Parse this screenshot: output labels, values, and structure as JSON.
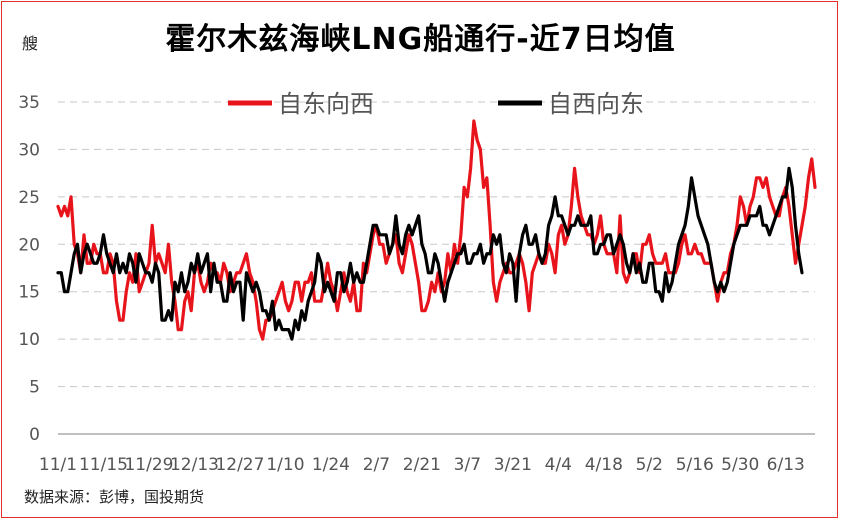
{
  "header": {
    "title": "霍尔木兹海峡LNG船通行-近7日均值",
    "unit": "艘"
  },
  "footer": {
    "source": "数据来源：彭博，国投期货"
  },
  "colors": {
    "series_westbound": "#e8141b",
    "series_eastbound": "#000000",
    "grid": "#c8c8c8",
    "frame": "#e03030"
  },
  "chart_data": {
    "type": "line",
    "title": "霍尔木兹海峡LNG船通行-近7日均值",
    "ylabel": "艘",
    "xlabel": "",
    "ylim": [
      0,
      35
    ],
    "yticks": [
      0,
      5,
      10,
      15,
      20,
      25,
      30,
      35
    ],
    "grid": "horizontal dashed",
    "legend_position": "top",
    "x_tick_labels": [
      "11/1",
      "11/15",
      "11/29",
      "12/13",
      "12/27",
      "1/10",
      "1/24",
      "2/7",
      "2/21",
      "3/7",
      "3/21",
      "4/4",
      "4/18",
      "5/2",
      "5/16",
      "5/30",
      "6/13"
    ],
    "x_tick_index": [
      0,
      14,
      28,
      42,
      56,
      70,
      84,
      98,
      112,
      126,
      140,
      154,
      168,
      182,
      196,
      210,
      224
    ],
    "series": [
      {
        "name": "自东向西",
        "values": [
          24,
          23,
          24,
          23,
          25,
          20,
          19,
          17,
          21,
          18,
          18,
          20,
          19,
          19,
          17,
          17,
          19,
          18,
          14,
          12,
          12,
          15,
          17,
          16,
          19,
          15,
          16,
          17,
          18,
          22,
          18,
          19,
          18,
          17,
          20,
          16,
          14,
          11,
          11,
          14,
          15,
          13,
          17,
          18,
          16,
          15,
          16,
          18,
          17,
          17,
          16,
          18,
          17,
          15,
          16,
          17,
          17,
          18,
          19,
          17,
          16,
          14,
          11,
          10,
          12,
          12,
          13,
          14,
          15,
          16,
          14,
          13,
          14,
          16,
          16,
          14,
          16,
          16,
          17,
          14,
          14,
          14,
          16,
          18,
          16,
          15,
          13,
          15,
          17,
          15,
          14,
          16,
          13,
          13,
          18,
          17,
          19,
          21,
          22,
          20,
          20,
          18,
          19,
          20,
          21,
          18,
          17,
          19,
          21,
          20,
          18,
          16,
          13,
          13,
          14,
          16,
          15,
          17,
          15,
          16,
          19,
          17,
          20,
          18,
          21,
          26,
          25,
          28,
          33,
          31,
          30,
          26,
          27,
          22,
          16,
          14,
          16,
          17,
          18,
          17,
          17,
          18,
          19,
          18,
          16,
          13,
          17,
          18,
          19,
          18,
          18,
          20,
          19,
          17,
          21,
          22,
          20,
          21,
          24,
          28,
          25,
          23,
          22,
          21,
          21,
          20,
          21,
          23,
          20,
          19,
          19,
          19,
          17,
          23,
          17,
          16,
          17,
          19,
          19,
          17,
          20,
          20,
          21,
          19,
          18,
          18,
          18,
          19,
          17,
          17,
          17,
          18,
          20,
          21,
          19,
          19,
          20,
          19,
          19,
          18,
          18,
          18,
          16,
          14,
          16,
          17,
          17,
          19,
          20,
          22,
          25,
          24,
          22,
          24,
          25,
          27,
          27,
          26,
          27,
          25,
          24,
          23,
          23,
          25,
          26,
          24,
          21,
          18,
          20,
          22,
          24,
          27,
          29,
          26
        ]
      },
      {
        "name": "自西向东",
        "values": [
          17,
          17,
          15,
          15,
          17,
          19,
          20,
          17,
          19,
          20,
          19,
          18,
          18,
          19,
          21,
          19,
          18,
          17,
          19,
          17,
          18,
          17,
          19,
          18,
          16,
          19,
          18,
          17,
          17,
          16,
          18,
          17,
          12,
          12,
          13,
          12,
          16,
          15,
          17,
          15,
          16,
          18,
          17,
          19,
          17,
          18,
          19,
          15,
          18,
          16,
          16,
          14,
          14,
          17,
          15,
          16,
          16,
          12,
          17,
          16,
          15,
          16,
          15,
          13,
          13,
          12,
          14,
          11,
          12,
          11,
          11,
          11,
          10,
          12,
          11,
          13,
          12,
          14,
          15,
          16,
          19,
          18,
          15,
          16,
          15,
          14,
          17,
          17,
          15,
          16,
          18,
          16,
          17,
          16,
          16,
          18,
          20,
          22,
          22,
          21,
          21,
          21,
          19,
          20,
          23,
          20,
          19,
          21,
          22,
          21,
          22,
          23,
          20,
          19,
          17,
          17,
          19,
          18,
          16,
          14,
          16,
          17,
          18,
          19,
          19,
          20,
          18,
          18,
          19,
          19,
          20,
          18,
          19,
          19,
          21,
          20,
          21,
          18,
          17,
          19,
          18,
          14,
          19,
          21,
          22,
          20,
          20,
          21,
          19,
          18,
          19,
          22,
          23,
          25,
          23,
          23,
          22,
          21,
          22,
          22,
          23,
          22,
          22,
          22,
          23,
          19,
          19,
          20,
          20,
          21,
          21,
          19,
          20,
          21,
          20,
          18,
          17,
          19,
          17,
          18,
          16,
          16,
          18,
          18,
          15,
          15,
          14,
          17,
          15,
          16,
          18,
          20,
          21,
          22,
          24,
          27,
          25,
          23,
          22,
          21,
          20,
          18,
          16,
          15,
          16,
          15,
          16,
          18,
          20,
          21,
          22,
          22,
          22,
          23,
          23,
          23,
          24,
          22,
          22,
          21,
          22,
          23,
          24,
          25,
          25,
          28,
          26,
          22,
          19,
          17
        ]
      }
    ]
  }
}
